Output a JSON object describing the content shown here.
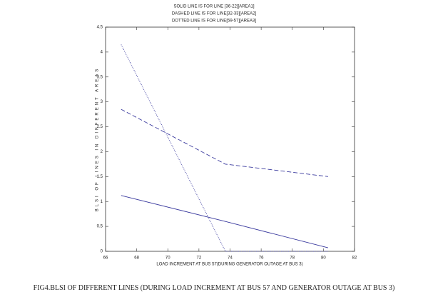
{
  "chart_data": {
    "type": "line",
    "title": [
      "SOLID LINE IS FOR LINE [36-22][AREA1]",
      "DASHED LINE IS FOR LINE[32-33][AREA2]",
      "DOTTED LINE IS FOR LINE[59-57][AREA3]"
    ],
    "x_label": "LOAD INCREMENT AT BUS 57(DURING GENERATOR OUTAGE AT BUS 3)",
    "y_label": "BLSI OF LINES IN DIFFERENT AREAS",
    "x": [
      67,
      73.7,
      80.3
    ],
    "series": [
      {
        "color": "#3a3a9e",
        "linestyle": "solid",
        "values": [
          1.12,
          0.6,
          0.07
        ]
      },
      {
        "color": "#3a3a9e",
        "linestyle": "dashed",
        "values": [
          2.85,
          1.75,
          1.5
        ]
      },
      {
        "color": "#3a3a9e",
        "linestyle": "dotted",
        "values": [
          4.15,
          0,
          0
        ]
      }
    ],
    "xlim": [
      66,
      82
    ],
    "xticks": [
      66,
      68,
      70,
      72,
      74,
      76,
      78,
      80,
      82
    ],
    "ylim": [
      0,
      4.5
    ],
    "yticks": [
      0,
      0.5,
      1,
      1.5,
      2,
      2.5,
      3,
      3.5,
      4,
      4.5
    ],
    "caption": "FIG4.BLSI OF DIFFERENT LINES (DURING LOAD INCREMENT AT BUS 57 AND GENERATOR OUTAGE AT BUS 3)"
  }
}
